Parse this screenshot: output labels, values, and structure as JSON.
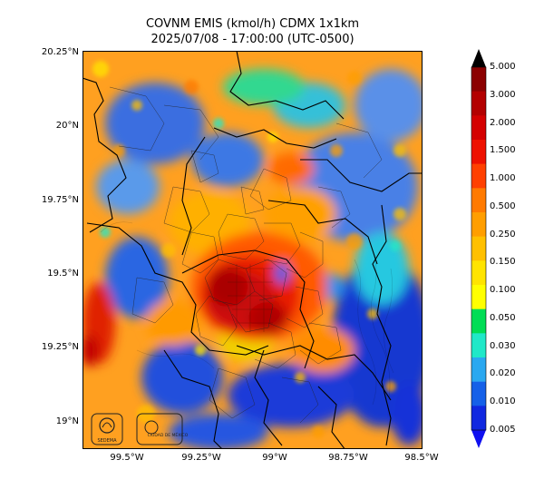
{
  "map": {
    "title_line1": "COVNM EMIS (kmol/h) CDMX 1x1km",
    "title_line2": "2025/07/08 - 17:00:00 (UTC-0500)",
    "lat_labels": [
      "20.25°N",
      "20°N",
      "19.75°N",
      "19.5°N",
      "19.25°N",
      "19°N"
    ],
    "lon_labels": [
      "99.5°W",
      "99.25°W",
      "99°W",
      "98.75°W",
      "98.5°W"
    ],
    "logo_left_text": "SEDEMA",
    "logo_right_text": "CIUDAD DE MÉXICO"
  },
  "colorbar": {
    "labels": [
      "5.000",
      "3.000",
      "2.000",
      "1.500",
      "1.000",
      "0.500",
      "0.250",
      "0.150",
      "0.100",
      "0.050",
      "0.030",
      "0.020",
      "0.010",
      "0.005"
    ],
    "colors": [
      "#8b0000",
      "#b30000",
      "#d40000",
      "#ee1100",
      "#ff4000",
      "#ff7a00",
      "#ff9e00",
      "#ffc000",
      "#ffe400",
      "#ffff00",
      "#00dd55",
      "#20e8c8",
      "#2aa8f0",
      "#1560e8",
      "#1028e0"
    ],
    "top_arrow_color": "#000000",
    "bottom_arrow_color": "#1010f0"
  }
}
